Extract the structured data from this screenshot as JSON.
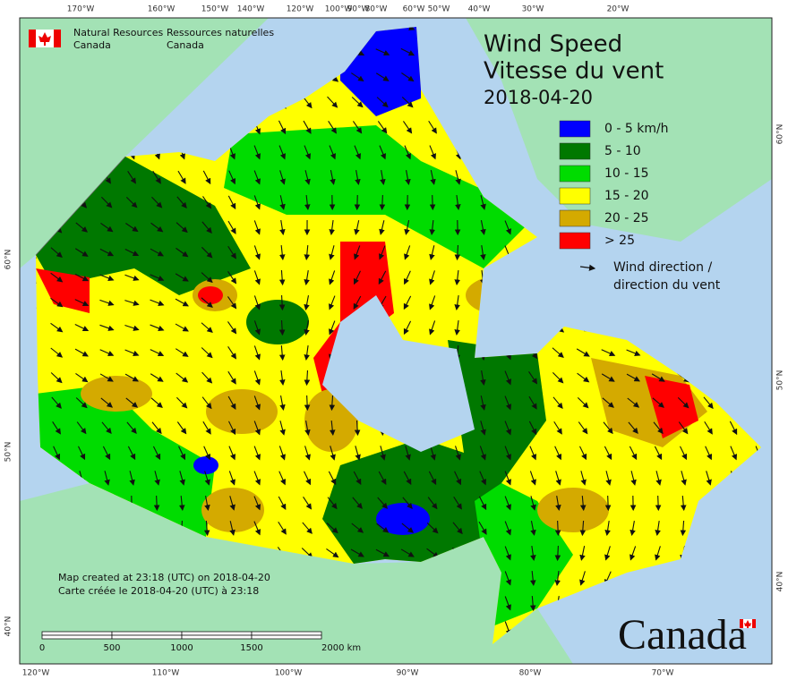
{
  "header": {
    "agency_en": [
      "Natural Resources",
      "Canada"
    ],
    "agency_fr": [
      "Ressources naturelles",
      "Canada"
    ]
  },
  "title": {
    "line1": "Wind Speed",
    "line2": "Vitesse du vent",
    "date": "2018-04-20"
  },
  "legend": {
    "items": [
      "0 - 5 km/h",
      "5 - 10",
      "10 - 15",
      "15 - 20",
      "20 - 25",
      "> 25"
    ],
    "colors": [
      "#0000ff",
      "#007800",
      "#00dc00",
      "#ffff00",
      "#d4aa00",
      "#ff0000"
    ],
    "direction": [
      "Wind direction /",
      "direction du vent"
    ]
  },
  "graticule": {
    "top": [
      "170°W",
      "160°W",
      "150°W",
      "140°W",
      "120°W",
      "100°W",
      "90°W",
      "80°W",
      "60°W",
      "50°W",
      "40°W",
      "30°W",
      "20°W"
    ],
    "bottom": [
      "120°W",
      "110°W",
      "100°W",
      "90°W",
      "80°W",
      "70°W"
    ],
    "left": [
      "60°N",
      "50°N",
      "40°N"
    ],
    "right": [
      "60°N",
      "50°N",
      "40°N"
    ]
  },
  "credits": [
    "Map created at 23:18 (UTC) on 2018-04-20",
    "Carte créée le 2018-04-20 (UTC) à 23:18"
  ],
  "scale_bar": [
    "0",
    "500",
    "1000",
    "1500",
    "2000 km"
  ],
  "wordmark": "Canada"
}
